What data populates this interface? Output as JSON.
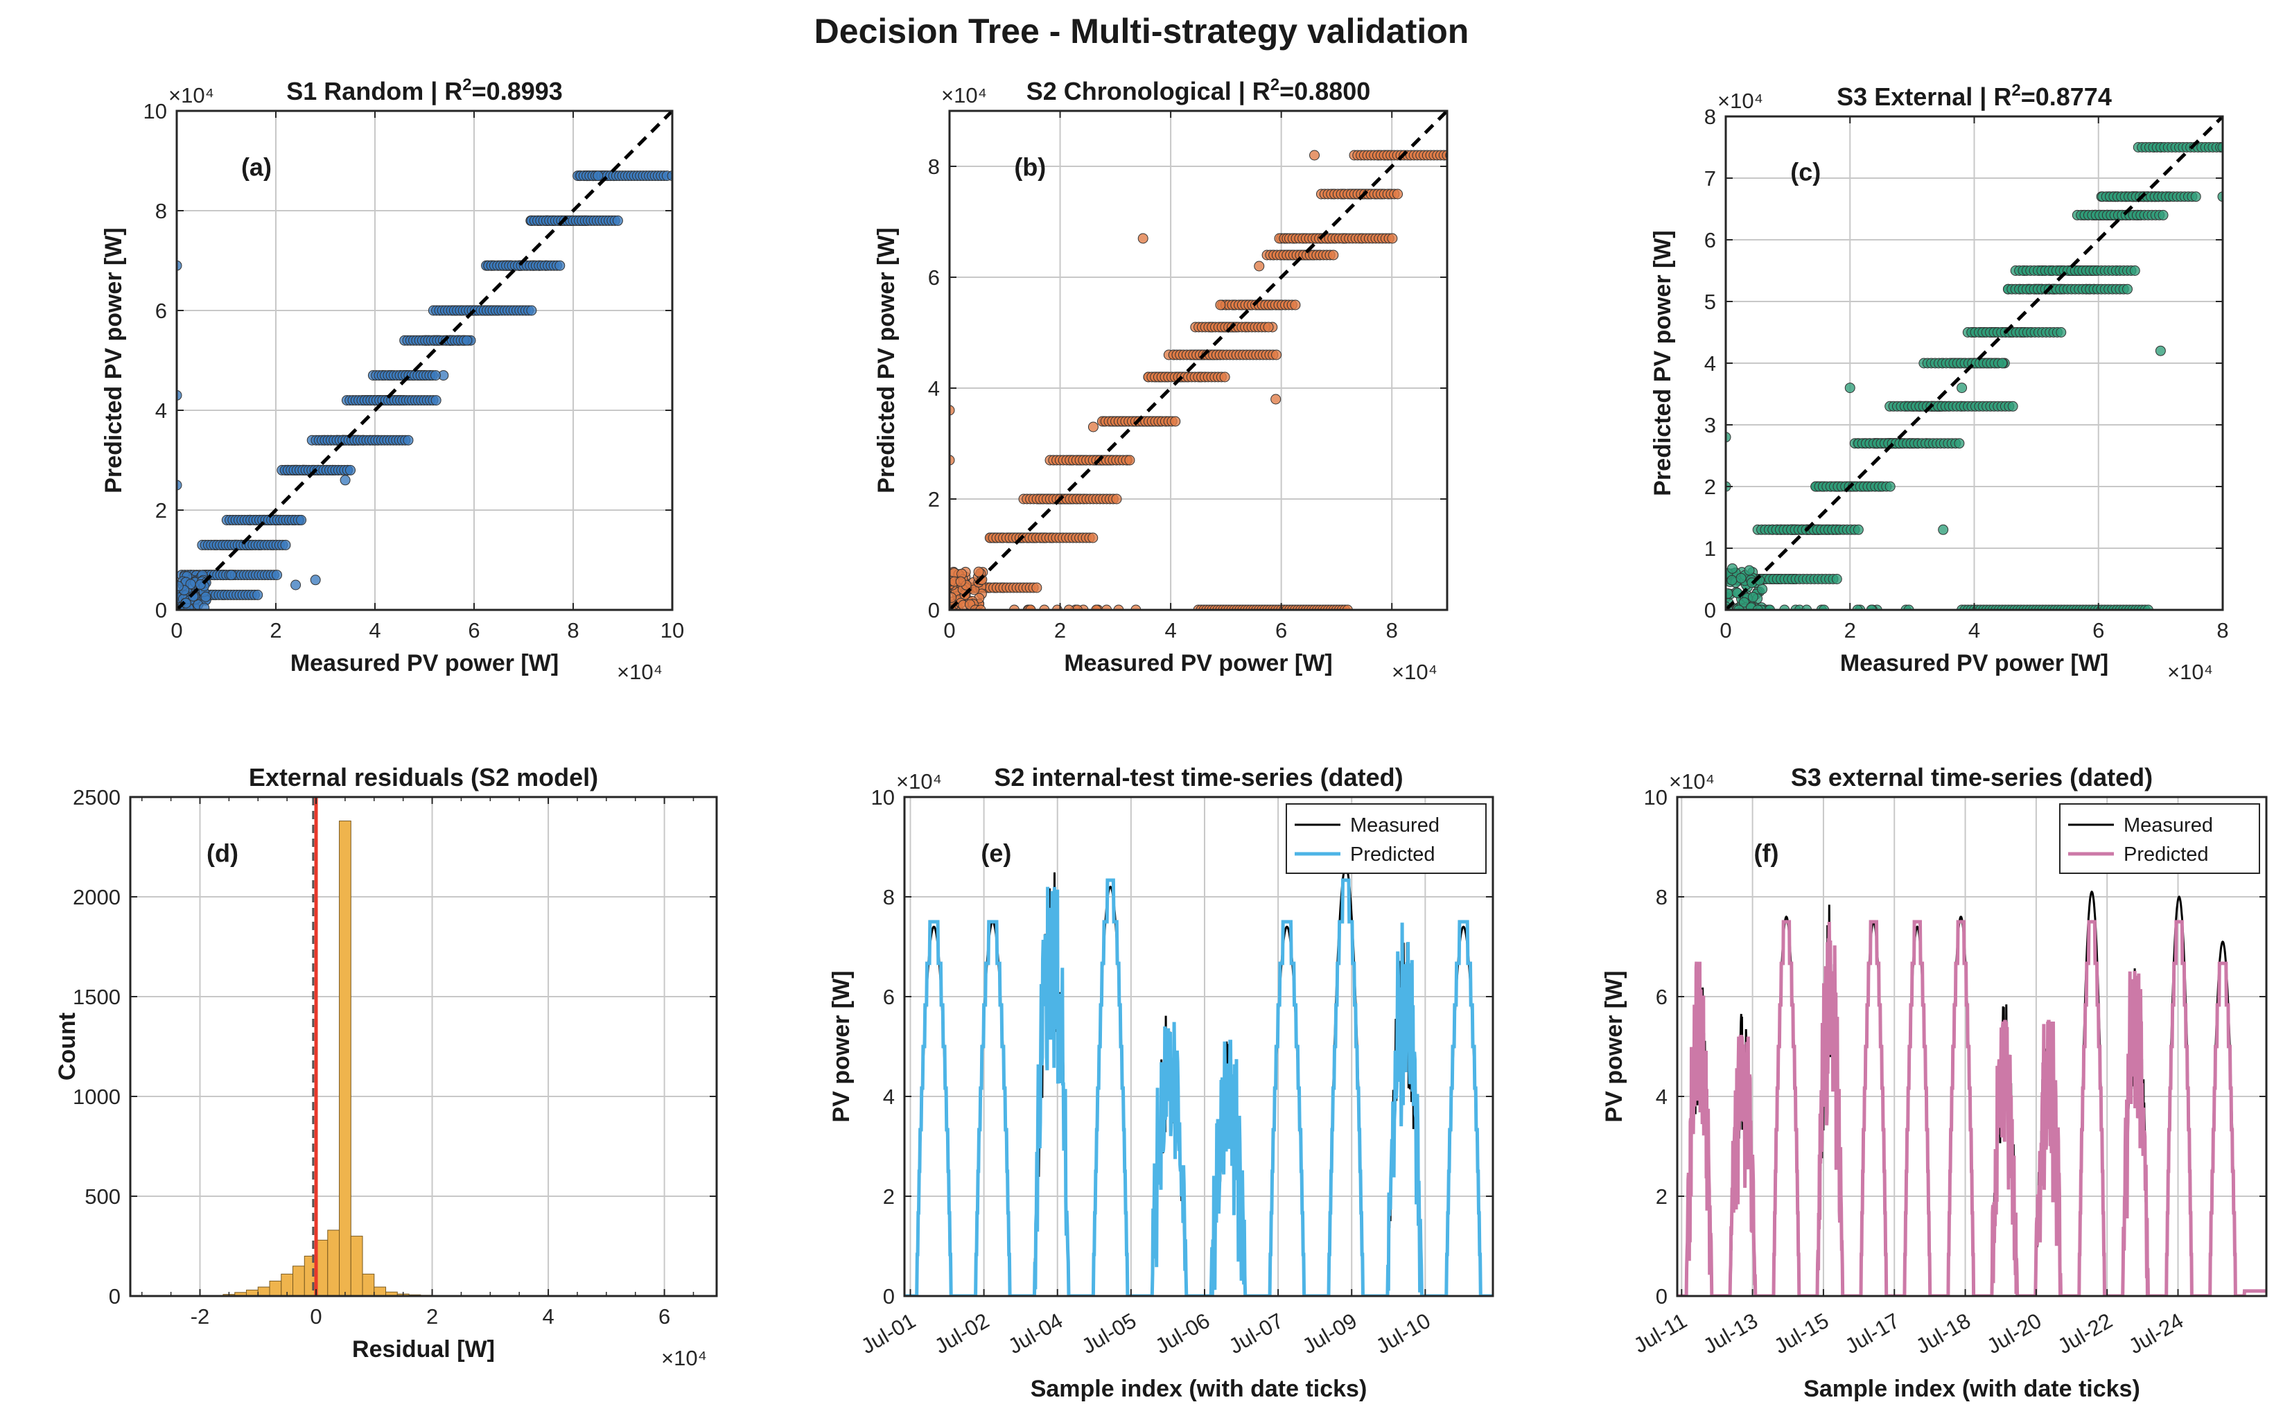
{
  "figure": {
    "suptitle": "Decision Tree  -  Multi-strategy validation"
  },
  "colors": {
    "s1": "#3b7bbf",
    "s2": "#e07b45",
    "s3": "#2e9e78",
    "hist": "#efb44d",
    "ts_pred_s2": "#4db4e6",
    "ts_pred_s3": "#cc79a7",
    "measured": "#000000",
    "zero_line": "#e8382a",
    "median_line": "#555555"
  },
  "chart_data": [
    {
      "id": "a",
      "type": "scatter",
      "panel_label": "(a)",
      "title": "S1 Random  |  R²=0.8993",
      "xlabel": "Measured PV power [W]",
      "ylabel": "Predicted PV power [W]",
      "x_exponent": "×10⁴",
      "y_exponent": "×10⁴",
      "xlim": [
        0,
        10
      ],
      "ylim": [
        0,
        10
      ],
      "xticks": [
        0,
        2,
        4,
        6,
        8,
        10
      ],
      "yticks": [
        0,
        2,
        4,
        6,
        8,
        10
      ],
      "reference_line": "y = x (dashed)",
      "grid": true,
      "levels": [
        0.3,
        0.7,
        1.3,
        1.8,
        2.8,
        3.4,
        4.2,
        4.7,
        5.4,
        6.0,
        6.9,
        7.8,
        8.7
      ],
      "outliers": [
        [
          0,
          6.9
        ],
        [
          0,
          4.3
        ],
        [
          0,
          2.5
        ],
        [
          2.4,
          0.5
        ],
        [
          1.1,
          0.7
        ],
        [
          10,
          8.7
        ],
        [
          8.5,
          8.7
        ],
        [
          2.8,
          0.6
        ],
        [
          3.4,
          2.6
        ]
      ]
    },
    {
      "id": "b",
      "type": "scatter",
      "panel_label": "(b)",
      "title": "S2 Chronological  |  R²=0.8800",
      "xlabel": "Measured PV power [W]",
      "ylabel": "Predicted PV power [W]",
      "x_exponent": "×10⁴",
      "y_exponent": "×10⁴",
      "xlim": [
        0,
        9
      ],
      "ylim": [
        0,
        9
      ],
      "xticks": [
        0,
        2,
        4,
        6,
        8
      ],
      "yticks": [
        0,
        2,
        4,
        6,
        8
      ],
      "reference_line": "y = x (dashed)",
      "grid": true,
      "levels": [
        0.4,
        1.3,
        2.0,
        2.7,
        3.4,
        4.2,
        4.6,
        5.1,
        5.5,
        6.4,
        6.7,
        7.5,
        8.2
      ],
      "outliers": [
        [
          0,
          3.6
        ],
        [
          0,
          2.7
        ],
        [
          3.5,
          6.7
        ],
        [
          5.9,
          3.8
        ],
        [
          6.6,
          8.2
        ],
        [
          4.9,
          5.5
        ],
        [
          2.6,
          3.3
        ],
        [
          5.6,
          6.2
        ]
      ],
      "zero_band": [
        4.5,
        7.2
      ]
    },
    {
      "id": "c",
      "type": "scatter",
      "panel_label": "(c)",
      "title": "S3 External  |  R²=0.8774",
      "xlabel": "Measured PV power [W]",
      "ylabel": "Predicted PV power [W]",
      "x_exponent": "×10⁴",
      "y_exponent": "×10⁴",
      "xlim": [
        0,
        8
      ],
      "ylim": [
        0,
        8
      ],
      "xticks": [
        0,
        2,
        4,
        6,
        8
      ],
      "yticks": [
        0,
        1,
        2,
        3,
        4,
        5,
        6,
        7,
        8
      ],
      "reference_line": "y = x (dashed)",
      "grid": true,
      "levels": [
        0.5,
        1.3,
        2.0,
        2.7,
        3.3,
        4.0,
        4.5,
        5.2,
        5.5,
        6.4,
        6.7,
        7.5
      ],
      "outliers": [
        [
          0,
          2.8
        ],
        [
          0,
          2.0
        ],
        [
          3.5,
          1.3
        ],
        [
          7.0,
          4.2
        ],
        [
          8.0,
          6.7
        ],
        [
          8.0,
          7.5
        ],
        [
          2.0,
          3.6
        ],
        [
          3.8,
          3.6
        ]
      ],
      "zero_band": [
        3.8,
        6.8
      ]
    },
    {
      "id": "d",
      "type": "histogram",
      "panel_label": "(d)",
      "title": "External residuals (S2 model)",
      "xlabel": "Residual [W]",
      "ylabel": "Count",
      "x_exponent": "×10⁴",
      "xlim": [
        -3.2,
        6.9
      ],
      "ylim": [
        0,
        2500
      ],
      "xticks": [
        -2,
        0,
        2,
        4,
        6
      ],
      "yticks": [
        0,
        500,
        1000,
        1500,
        2000,
        2500
      ],
      "grid": true,
      "bin_width": 0.2,
      "bin_start": -1.6,
      "counts": [
        8,
        18,
        30,
        45,
        75,
        110,
        150,
        200,
        280,
        330,
        2380,
        300,
        110,
        45,
        20,
        10,
        6,
        4,
        3,
        2,
        2,
        2,
        1,
        1,
        1,
        1,
        1,
        1,
        1
      ],
      "vertical_lines": {
        "zero": 0,
        "median": -0.05
      }
    },
    {
      "id": "e",
      "type": "line",
      "panel_label": "(e)",
      "title": "S2 internal-test time-series (dated)",
      "xlabel": "Sample index (with date ticks)",
      "ylabel": "PV power [W]",
      "y_exponent": "×10⁴",
      "ylim": [
        0,
        10
      ],
      "yticks": [
        0,
        2,
        4,
        6,
        8,
        10
      ],
      "date_ticks": [
        "Jul-01",
        "Jul-02",
        "Jul-04",
        "Jul-05",
        "Jul-06",
        "Jul-07",
        "Jul-09",
        "Jul-10"
      ],
      "legend": [
        "Measured",
        "Predicted"
      ],
      "legend_position": "top-right",
      "grid": true,
      "days": [
        {
          "measured_peak": 7.4,
          "predicted_peak": 7.5,
          "noisy": false
        },
        {
          "measured_peak": 7.5,
          "predicted_peak": 7.5,
          "noisy": false
        },
        {
          "measured_peak": 9.0,
          "predicted_peak": 8.2,
          "noisy": true
        },
        {
          "measured_peak": 8.2,
          "predicted_peak": 8.2,
          "noisy": false
        },
        {
          "measured_peak": 6.0,
          "predicted_peak": 5.5,
          "noisy": true
        },
        {
          "measured_peak": 5.2,
          "predicted_peak": 5.1,
          "noisy": true
        },
        {
          "measured_peak": 7.4,
          "predicted_peak": 7.5,
          "noisy": false
        },
        {
          "measured_peak": 8.6,
          "predicted_peak": 8.2,
          "noisy": false
        },
        {
          "measured_peak": 7.5,
          "predicted_peak": 7.5,
          "noisy": true
        },
        {
          "measured_peak": 7.4,
          "predicted_peak": 7.5,
          "noisy": false
        }
      ]
    },
    {
      "id": "f",
      "type": "line",
      "panel_label": "(f)",
      "title": "S3 external time-series (dated)",
      "xlabel": "Sample index (with date ticks)",
      "ylabel": "PV power [W]",
      "y_exponent": "×10⁴",
      "ylim": [
        0,
        10
      ],
      "yticks": [
        0,
        2,
        4,
        6,
        8,
        10
      ],
      "date_ticks": [
        "Jul-11",
        "Jul-13",
        "Jul-15",
        "Jul-17",
        "Jul-18",
        "Jul-20",
        "Jul-22",
        "Jul-24"
      ],
      "legend": [
        "Measured",
        "Predicted"
      ],
      "legend_position": "top-right",
      "grid": true,
      "days": [
        {
          "measured_peak": 6.8,
          "predicted_peak": 6.7,
          "noisy": true
        },
        {
          "measured_peak": 5.9,
          "predicted_peak": 5.2,
          "noisy": true
        },
        {
          "measured_peak": 7.6,
          "predicted_peak": 7.5,
          "noisy": false
        },
        {
          "measured_peak": 8.0,
          "predicted_peak": 7.5,
          "noisy": true
        },
        {
          "measured_peak": 7.5,
          "predicted_peak": 7.5,
          "noisy": false
        },
        {
          "measured_peak": 7.4,
          "predicted_peak": 7.5,
          "noisy": false
        },
        {
          "measured_peak": 7.6,
          "predicted_peak": 7.5,
          "noisy": false
        },
        {
          "measured_peak": 6.0,
          "predicted_peak": 5.5,
          "noisy": true
        },
        {
          "measured_peak": 5.7,
          "predicted_peak": 5.5,
          "noisy": true
        },
        {
          "measured_peak": 8.1,
          "predicted_peak": 7.5,
          "noisy": false
        },
        {
          "measured_peak": 7.1,
          "predicted_peak": 6.7,
          "noisy": true
        },
        {
          "measured_peak": 8.0,
          "predicted_peak": 7.5,
          "noisy": false
        },
        {
          "measured_peak": 7.1,
          "predicted_peak": 6.7,
          "noisy": false
        }
      ],
      "tail_level": 0.1
    }
  ]
}
